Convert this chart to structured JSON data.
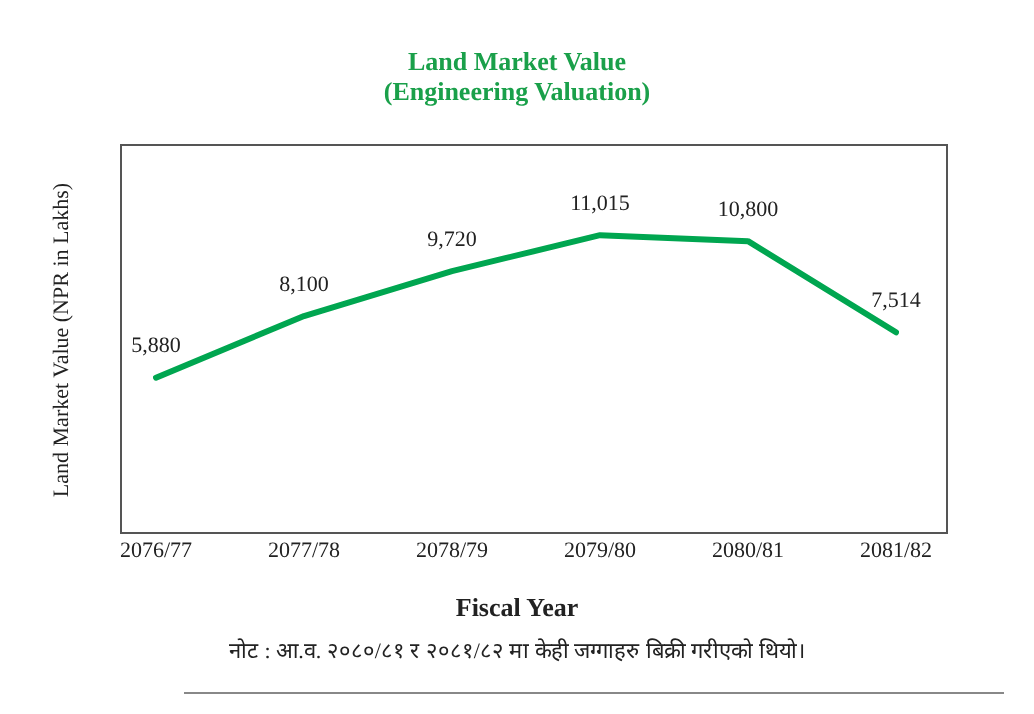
{
  "chart_data": {
    "type": "line",
    "title": "Land Market Value\n(Engineering Valuation)",
    "xlabel": "Fiscal Year",
    "ylabel": "Land Market Value (NPR in Lakhs)",
    "categories": [
      "2076/77",
      "2077/78",
      "2078/79",
      "2079/80",
      "2080/81",
      "2081/82"
    ],
    "series": [
      {
        "color": "#00a650",
        "values": [
          5880,
          8100,
          9720,
          11015,
          10800,
          7514
        ],
        "value_labels": [
          "5,880",
          "8,100",
          "9,720",
          "11,015",
          "10,800",
          "7,514"
        ]
      }
    ],
    "marker": "none",
    "line_style": "solid",
    "grid": false,
    "legend": false,
    "annotations": [
      "नोट : आ.व. २०८०/८१ र २०८१/८२ मा केही जग्गाहरु बिक्री गरीएको थियो।"
    ]
  }
}
